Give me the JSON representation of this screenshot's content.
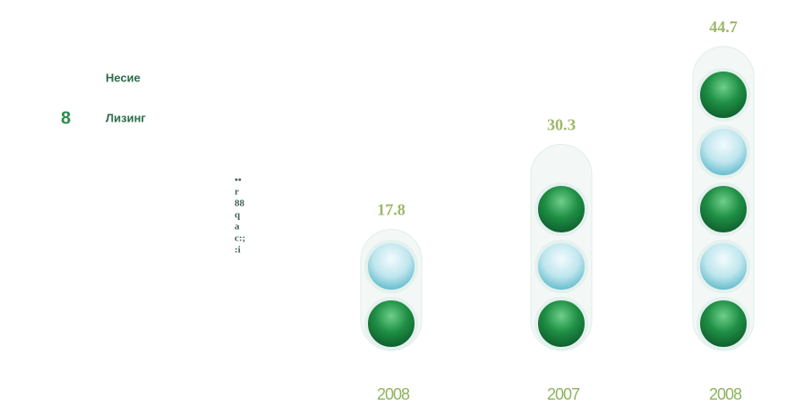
{
  "chart_data": {
    "type": "bubble-stack",
    "categories": [
      "2008",
      "2007",
      "2008"
    ],
    "values": [
      17.8,
      30.3,
      44.7
    ],
    "value_labels": [
      "17.8",
      "30.З",
      "44.7"
    ],
    "color": "#2e8b4a",
    "legend": {
      "marker": "8",
      "items": [
        "Несие",
        "Лизинг"
      ]
    },
    "side_fragments": [
      "••",
      "r",
      "88",
      "q",
      "a",
      "c:;",
      ":i"
    ]
  }
}
